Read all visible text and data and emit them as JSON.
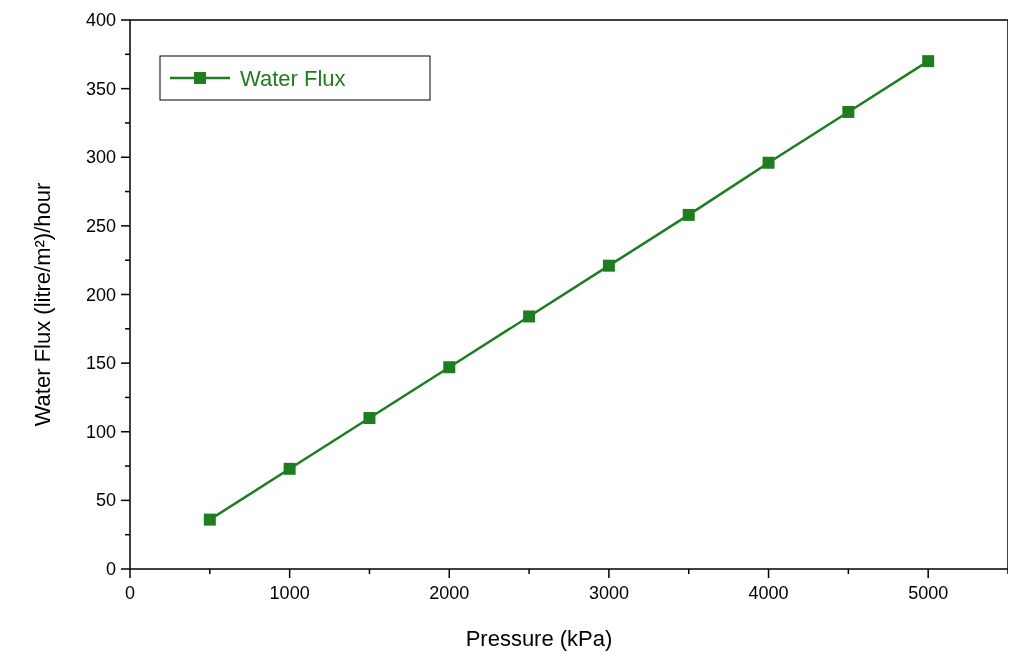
{
  "chart_data": {
    "type": "line",
    "xlabel": "Pressure (kPa)",
    "ylabel": "Water Flux (litre/m²)/hour",
    "x": [
      500,
      1000,
      1500,
      2000,
      2500,
      3000,
      3500,
      4000,
      4500,
      5000
    ],
    "series": [
      {
        "name": "Water Flux",
        "color": "#1e7d1e",
        "values": [
          36,
          73,
          110,
          147,
          184,
          221,
          258,
          296,
          333,
          370
        ]
      }
    ],
    "xlim": [
      0,
      5500
    ],
    "xticks": [
      0,
      {
        "value": 500,
        "label": null
      },
      1000,
      {
        "value": 1500,
        "label": null
      },
      2000,
      {
        "value": 2500,
        "label": null
      },
      3000,
      {
        "value": 3500,
        "label": null
      },
      4000,
      {
        "value": 4500,
        "label": null
      },
      5000,
      {
        "value": 5500,
        "label": null
      }
    ],
    "ylim": [
      0,
      400
    ],
    "yticks": [
      0,
      {
        "value": 25,
        "label": null
      },
      50,
      {
        "value": 75,
        "label": null
      },
      100,
      {
        "value": 125,
        "label": null
      },
      150,
      {
        "value": 175,
        "label": null
      },
      200,
      {
        "value": 225,
        "label": null
      },
      250,
      {
        "value": 275,
        "label": null
      },
      300,
      {
        "value": 325,
        "label": null
      },
      350,
      {
        "value": 375,
        "label": null
      },
      400
    ],
    "marker": "square",
    "line_style": "solid",
    "legend": "top left",
    "grid": false
  }
}
